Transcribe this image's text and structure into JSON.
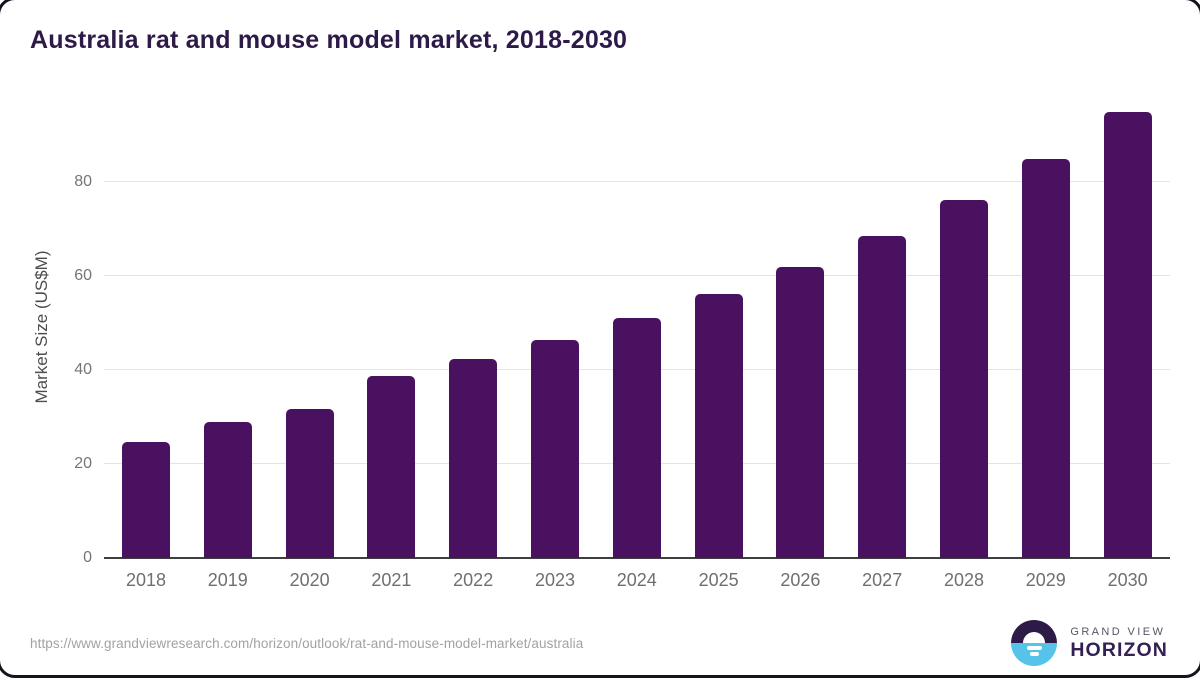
{
  "header": {
    "title": "Australia rat and mouse model market, 2018-2030"
  },
  "footer": {
    "source_url": "https://www.grandviewresearch.com/horizon/outlook/rat-and-mouse-model-market/australia",
    "logo": {
      "icon": "sunrise-over-horizon-icon",
      "brand_line1": "GRAND VIEW",
      "brand_line2": "HORIZON"
    }
  },
  "chart_data": {
    "type": "bar",
    "title": "Australia rat and mouse model market, 2018-2030",
    "xlabel": "",
    "ylabel": "Market Size (US$M)",
    "categories": [
      "2018",
      "2019",
      "2020",
      "2021",
      "2022",
      "2023",
      "2024",
      "2025",
      "2026",
      "2027",
      "2028",
      "2029",
      "2030"
    ],
    "values": [
      24.6,
      29.0,
      31.7,
      38.8,
      42.4,
      46.4,
      51.0,
      56.2,
      61.9,
      68.5,
      76.2,
      84.9,
      94.9
    ],
    "yticks": [
      0,
      20,
      40,
      60,
      80
    ],
    "ylim": [
      0,
      98.3
    ],
    "grid": true,
    "legend": false,
    "bar_color": "#4a1160",
    "colors": {
      "title_text": "#2e1a47",
      "axis_line": "#3f3f3f",
      "gridline": "#e4e4e4",
      "y_tick_label": "#757575",
      "x_tick_label": "#6f6f6f",
      "source_url_text": "#a2a2a2",
      "logo_dark": "#2e1a47",
      "logo_blue": "#56c3ea"
    }
  }
}
